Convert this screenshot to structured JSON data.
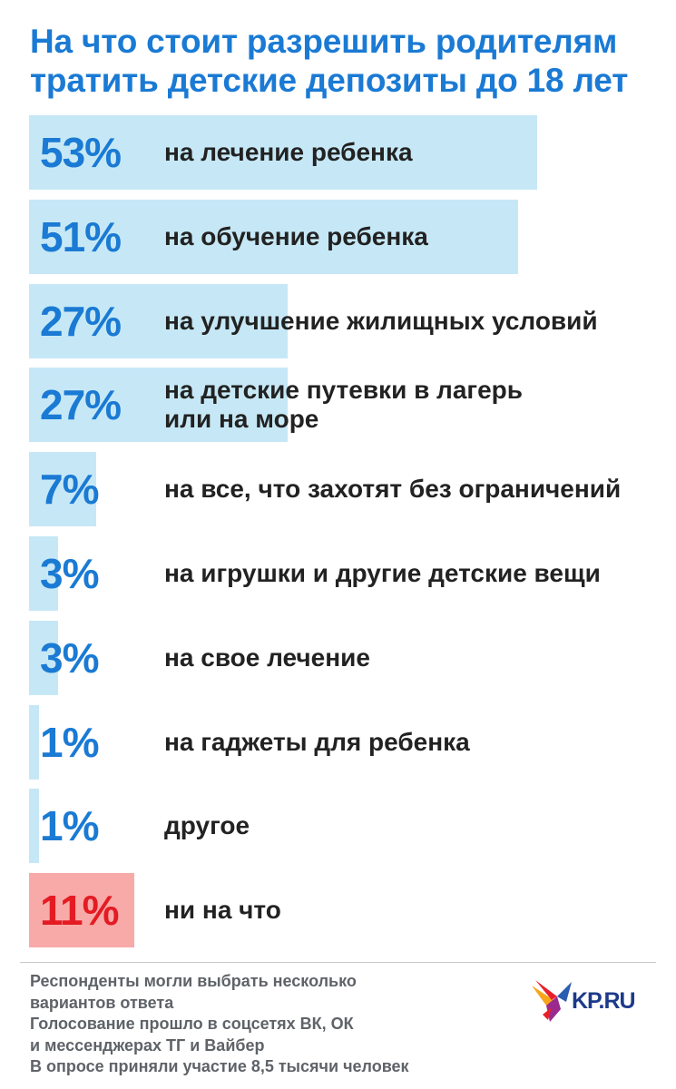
{
  "title_lines": [
    "На что стоит разрешить родителям",
    "тратить детские депозиты до 18 лет"
  ],
  "colors": {
    "title": "#1a7ad4",
    "bar": "#c6e8f6",
    "bar_highlight": "#f8aaa8",
    "pct": "#1a7ad4",
    "pct_highlight": "#e41b23",
    "label": "#222222",
    "notes": "#5f6368"
  },
  "chart_data": {
    "type": "bar",
    "orientation": "horizontal",
    "unit": "%",
    "categories": [
      "на лечение ребенка",
      "на обучение ребенка",
      "на улучшение жилищных условий",
      "на детские путевки в лагерь или на море",
      "на все, что захотят без ограничений",
      "на игрушки и другие детские вещи",
      "на свое лечение",
      "на гаджеты для ребенка",
      "другое",
      "ни на что"
    ],
    "values": [
      53,
      51,
      27,
      27,
      7,
      3,
      3,
      1,
      1,
      11
    ],
    "value_labels": [
      "53%",
      "51%",
      "27%",
      "27%",
      "7%",
      "3%",
      "3%",
      "1%",
      "1%",
      "11%"
    ],
    "highlight_index": 9,
    "xlim": [
      0,
      53
    ]
  },
  "notes": [
    "Респонденты могли выбрать несколько",
    "вариантов ответа",
    "Голосование прошло в соцсетях ВК, ОК",
    "и мессенджерах ТГ и Вайбер",
    "В опросе приняли участие 8,5 тысячи человек"
  ],
  "logo": {
    "text": "KP.RU",
    "icon": "kp-bird-logo-icon"
  }
}
